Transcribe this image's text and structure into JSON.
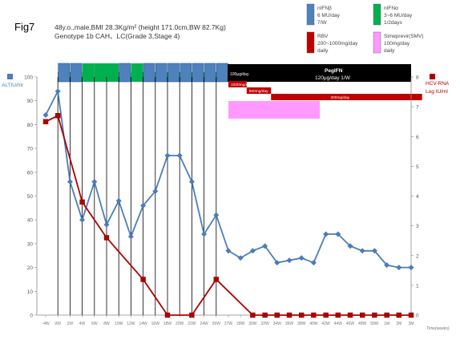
{
  "figure": {
    "label": "Fig7",
    "patient_line": "48y.o.,male,BMI 28.3Kg/m² (height 171.0cm,BW 82.7Kg)",
    "genotype_line": "Genotype 1b CAH、LC(Grade 3,Stage 4)"
  },
  "legend": [
    {
      "key": "nIFNb",
      "color": "#4f81bd",
      "lines": [
        "nIFNβ",
        "6 MU/day",
        "7/W"
      ]
    },
    {
      "key": "nIFNa",
      "color": "#00b050",
      "lines": [
        "nIFNα",
        "3~6 MU/day",
        "1/2days"
      ]
    },
    {
      "key": "rbv",
      "color": "#c00000",
      "lines": [
        "RBV",
        "200~1000mg/day",
        "daily"
      ]
    },
    {
      "key": "smv",
      "color": "#ff99ff",
      "lines": [
        "Simeprevir(SMV)",
        "100mg/day",
        "daily"
      ]
    }
  ],
  "treatment": {
    "ifn_blocks": [
      "b",
      "b",
      "g",
      "g",
      "g",
      "b",
      "g",
      "b",
      "b",
      "b",
      "b",
      "b",
      "b",
      "b"
    ],
    "peg_title": "PegIFN",
    "peg_dose": "120μg/day   1/W",
    "peg_start_label": "100μg/day",
    "rbv_bars": [
      {
        "label": "1000mg/day",
        "start": 15,
        "end": 16.5
      },
      {
        "label": "800mg/day",
        "start": 16.5,
        "end": 18.5
      },
      {
        "label": "200mg/day",
        "start": 18.5,
        "end": 30.9
      }
    ],
    "smv": {
      "start": 15,
      "end": 22.5
    }
  },
  "chart_data": {
    "type": "line",
    "x": [
      "-4W",
      "0W",
      "2W",
      "4W",
      "6W",
      "8W",
      "10W",
      "12W",
      "14W",
      "16W",
      "18W",
      "20W",
      "22W",
      "24W",
      "26W",
      "27W",
      "28W",
      "30W",
      "32W",
      "34W",
      "36W",
      "38W",
      "40W",
      "42W",
      "44W",
      "46W",
      "48W",
      "50W",
      "1M",
      "2M",
      "3M"
    ],
    "series": [
      {
        "name": "ALT",
        "axis": "left",
        "color": "#4a7ebb",
        "marker": "diamond",
        "values": [
          84,
          94,
          56,
          40,
          56,
          38,
          48,
          33,
          46,
          52,
          67,
          67,
          56,
          34,
          42,
          27,
          24,
          27,
          29,
          22,
          23,
          24,
          22,
          34,
          34,
          29,
          27,
          27,
          21,
          20,
          20
        ]
      },
      {
        "name": "HCV-RNA",
        "axis": "right",
        "color": "#b00000",
        "marker": "square",
        "values": [
          6.5,
          6.7,
          null,
          3.8,
          null,
          2.6,
          null,
          null,
          1.2,
          null,
          0,
          null,
          0,
          null,
          1.2,
          null,
          null,
          0,
          0,
          0,
          0,
          0,
          0,
          0,
          0,
          0,
          0,
          0,
          0,
          0,
          0
        ]
      }
    ],
    "y_left": {
      "label_icon": "ALT",
      "label": "ALTIU/ml",
      "min": 0,
      "max": 100,
      "ticks": [
        0,
        10,
        20,
        30,
        40,
        50,
        60,
        70,
        80,
        90,
        100
      ]
    },
    "y_right": {
      "label_icon": "HCV-RNA",
      "label1": "HCV-RNA",
      "label2": "Log IU/ml",
      "min": 0,
      "max": 8,
      "ticks": [
        0,
        1,
        2,
        3,
        4,
        5,
        6,
        7,
        8
      ]
    },
    "xlabel": "Time(weeks)",
    "vlines_from_index": 1,
    "vlines_to_index": 14
  }
}
